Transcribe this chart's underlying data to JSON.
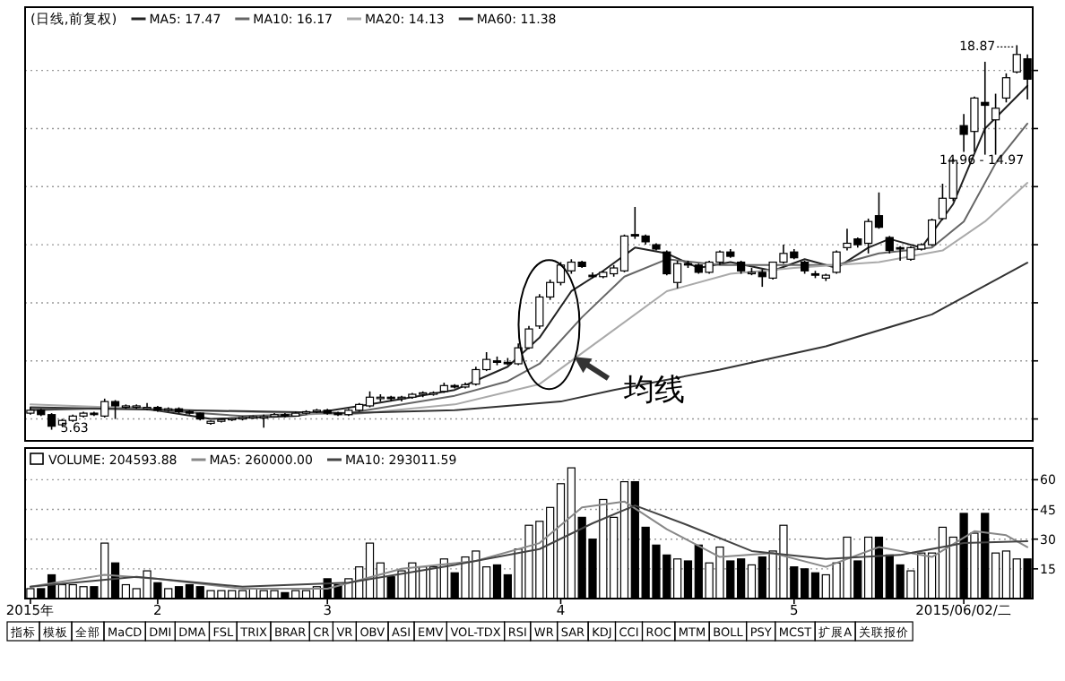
{
  "chart_data": [
    {
      "type": "candlestick",
      "title": "(日线,前复权)",
      "grid": "y",
      "legend": "top left",
      "categories": [
        null,
        null,
        null,
        null,
        null,
        null,
        null,
        null,
        null,
        null,
        null,
        null,
        null,
        null,
        null,
        null,
        null,
        null,
        null,
        null,
        null,
        null,
        null,
        null,
        null,
        null,
        null,
        null,
        null,
        null,
        null,
        null,
        null,
        null,
        null,
        null,
        null,
        null,
        null,
        null,
        null,
        null,
        null,
        null,
        null,
        null,
        null,
        null,
        null,
        null,
        null,
        null,
        null,
        null,
        null,
        null,
        null,
        null,
        null,
        null,
        null,
        null,
        null,
        null,
        null,
        null,
        null,
        null,
        null,
        null,
        null,
        null,
        null,
        null,
        null,
        null,
        null,
        null,
        null,
        null,
        null,
        null,
        null,
        null,
        null,
        null,
        null,
        null,
        null,
        null,
        null,
        null,
        null,
        null,
        null
      ],
      "ohlc": [
        [
          6.2,
          6.4,
          6.15,
          6.3
        ],
        [
          6.3,
          6.35,
          6.1,
          6.15
        ],
        [
          6.15,
          6.2,
          5.63,
          5.75
        ],
        [
          5.8,
          6.0,
          5.75,
          5.95
        ],
        [
          5.95,
          6.15,
          5.9,
          6.1
        ],
        [
          6.1,
          6.25,
          6.05,
          6.2
        ],
        [
          6.2,
          6.25,
          6.1,
          6.15
        ],
        [
          6.1,
          6.7,
          6.05,
          6.6
        ],
        [
          6.6,
          6.65,
          6.0,
          6.45
        ],
        [
          6.4,
          6.5,
          6.35,
          6.45
        ],
        [
          6.4,
          6.5,
          6.35,
          6.45
        ],
        [
          6.35,
          6.55,
          6.3,
          6.4
        ],
        [
          6.4,
          6.45,
          6.25,
          6.3
        ],
        [
          6.3,
          6.4,
          6.25,
          6.35
        ],
        [
          6.35,
          6.4,
          6.2,
          6.25
        ],
        [
          6.25,
          6.3,
          6.15,
          6.2
        ],
        [
          6.2,
          6.22,
          5.95,
          6.0
        ],
        [
          5.85,
          5.95,
          5.8,
          5.92
        ],
        [
          5.92,
          6.0,
          5.88,
          5.98
        ],
        [
          5.98,
          6.05,
          5.93,
          6.02
        ],
        [
          6.0,
          6.1,
          5.95,
          6.05
        ],
        [
          6.05,
          6.12,
          6.0,
          6.08
        ],
        [
          6.05,
          6.15,
          5.7,
          6.08
        ],
        [
          6.08,
          6.2,
          6.05,
          6.15
        ],
        [
          6.15,
          6.2,
          6.05,
          6.1
        ],
        [
          6.1,
          6.25,
          6.08,
          6.2
        ],
        [
          6.2,
          6.3,
          6.15,
          6.25
        ],
        [
          6.25,
          6.35,
          6.2,
          6.3
        ],
        [
          6.3,
          6.35,
          6.15,
          6.2
        ],
        [
          6.2,
          6.25,
          6.1,
          6.15
        ],
        [
          6.15,
          6.35,
          6.1,
          6.3
        ],
        [
          6.3,
          6.55,
          6.25,
          6.5
        ],
        [
          6.45,
          6.95,
          6.4,
          6.75
        ],
        [
          6.7,
          6.85,
          6.6,
          6.75
        ],
        [
          6.75,
          6.8,
          6.6,
          6.7
        ],
        [
          6.7,
          6.8,
          6.6,
          6.75
        ],
        [
          6.75,
          6.9,
          6.7,
          6.85
        ],
        [
          6.85,
          6.95,
          6.75,
          6.9
        ],
        [
          6.85,
          6.95,
          6.8,
          6.9
        ],
        [
          6.95,
          7.25,
          6.9,
          7.15
        ],
        [
          7.15,
          7.2,
          7.05,
          7.1
        ],
        [
          7.1,
          7.25,
          7.05,
          7.18
        ],
        [
          7.2,
          7.8,
          7.15,
          7.7
        ],
        [
          7.7,
          8.3,
          7.65,
          8.05
        ],
        [
          8.0,
          8.15,
          7.85,
          7.95
        ],
        [
          7.95,
          8.1,
          7.85,
          7.9
        ],
        [
          7.9,
          8.6,
          7.85,
          8.45
        ],
        [
          8.45,
          9.2,
          8.4,
          9.1
        ],
        [
          9.2,
          10.3,
          9.1,
          10.2
        ],
        [
          10.2,
          10.8,
          10.1,
          10.7
        ],
        [
          10.7,
          11.4,
          10.6,
          11.3
        ],
        [
          11.1,
          11.5,
          11.0,
          11.4
        ],
        [
          11.4,
          11.45,
          11.2,
          11.25
        ],
        [
          10.95,
          11.05,
          10.85,
          10.9
        ],
        [
          10.9,
          11.1,
          10.85,
          11.05
        ],
        [
          11.0,
          11.3,
          10.9,
          11.2
        ],
        [
          11.1,
          12.35,
          11.05,
          12.3
        ],
        [
          12.35,
          13.3,
          12.2,
          12.3
        ],
        [
          12.3,
          12.35,
          12.0,
          12.1
        ],
        [
          12.0,
          12.05,
          11.8,
          11.85
        ],
        [
          11.75,
          11.8,
          10.95,
          11.0
        ],
        [
          10.7,
          11.45,
          10.5,
          11.35
        ],
        [
          11.35,
          11.45,
          11.2,
          11.3
        ],
        [
          11.3,
          11.35,
          11.0,
          11.05
        ],
        [
          11.05,
          11.45,
          11.0,
          11.4
        ],
        [
          11.4,
          11.8,
          11.3,
          11.75
        ],
        [
          11.75,
          11.85,
          11.55,
          11.6
        ],
        [
          11.4,
          11.45,
          11.0,
          11.1
        ],
        [
          11.0,
          11.2,
          10.95,
          11.05
        ],
        [
          11.05,
          11.15,
          10.55,
          10.9
        ],
        [
          10.85,
          11.4,
          10.8,
          11.4
        ],
        [
          11.4,
          12.0,
          11.35,
          11.7
        ],
        [
          11.75,
          11.85,
          11.5,
          11.55
        ],
        [
          11.4,
          11.45,
          11.0,
          11.1
        ],
        [
          11.0,
          11.1,
          10.85,
          10.95
        ],
        [
          10.85,
          11.0,
          10.75,
          10.95
        ],
        [
          11.05,
          11.8,
          11.0,
          11.75
        ],
        [
          11.9,
          12.55,
          11.8,
          12.05
        ],
        [
          12.2,
          12.25,
          11.9,
          12.0
        ],
        [
          12.05,
          12.9,
          11.7,
          12.8
        ],
        [
          13.0,
          13.8,
          12.55,
          12.6
        ],
        [
          12.25,
          12.3,
          11.7,
          11.8
        ],
        [
          11.9,
          11.95,
          11.45,
          11.85
        ],
        [
          11.5,
          11.95,
          11.45,
          11.9
        ],
        [
          11.85,
          12.05,
          11.8,
          12.0
        ],
        [
          12.0,
          12.9,
          11.95,
          12.85
        ],
        [
          12.9,
          14.1,
          12.85,
          13.6
        ],
        [
          13.6,
          14.96,
          13.5,
          14.9
        ],
        [
          16.1,
          16.5,
          15.2,
          15.8
        ],
        [
          15.9,
          17.1,
          15.2,
          17.05
        ],
        [
          16.9,
          18.3,
          15.1,
          16.8
        ],
        [
          16.3,
          17.2,
          15.1,
          16.7
        ],
        [
          17.05,
          17.9,
          16.9,
          17.75
        ],
        [
          17.95,
          18.87,
          17.9,
          18.55
        ],
        [
          18.4,
          18.55,
          17.0,
          17.7
        ]
      ],
      "series": [
        {
          "type": "line",
          "name": "MA5: 17.47",
          "color": "#222222",
          "values": [
            6.3,
            null,
            null,
            null,
            null,
            null,
            null,
            null,
            null,
            null,
            6.4,
            null,
            null,
            null,
            null,
            null,
            null,
            6.0,
            null,
            null,
            null,
            null,
            null,
            null,
            null,
            6.1,
            null,
            null,
            null,
            null,
            null,
            null,
            6.5,
            null,
            null,
            null,
            null,
            null,
            null,
            null,
            7.0,
            null,
            null,
            null,
            null,
            7.8,
            null,
            null,
            8.8,
            null,
            null,
            10.4,
            null,
            null,
            11.1,
            null,
            null,
            11.9,
            null,
            null,
            11.7,
            null,
            null,
            11.2,
            null,
            null,
            11.4,
            null,
            null,
            null,
            11.1,
            null,
            null,
            11.5,
            null,
            null,
            11.2,
            null,
            null,
            11.9,
            null,
            12.2,
            null,
            null,
            11.9,
            null,
            null,
            13.4,
            null,
            null,
            16.0,
            null,
            null,
            null,
            17.47
          ]
        },
        {
          "type": "line",
          "name": "MA10: 16.17",
          "color": "#666666",
          "values": [
            6.35,
            null,
            null,
            null,
            null,
            null,
            null,
            null,
            null,
            null,
            6.35,
            null,
            null,
            null,
            null,
            null,
            null,
            null,
            null,
            null,
            6.1,
            null,
            null,
            null,
            null,
            null,
            null,
            null,
            null,
            null,
            6.2,
            null,
            null,
            null,
            null,
            null,
            null,
            null,
            null,
            null,
            6.8,
            null,
            null,
            null,
            null,
            7.3,
            null,
            null,
            7.9,
            null,
            null,
            null,
            9.5,
            null,
            null,
            null,
            10.9,
            null,
            null,
            null,
            11.5,
            null,
            null,
            null,
            null,
            11.3,
            null,
            null,
            null,
            null,
            11.3,
            null,
            null,
            null,
            null,
            null,
            11.3,
            null,
            null,
            null,
            11.7,
            null,
            null,
            null,
            null,
            11.9,
            null,
            null,
            12.8,
            null,
            null,
            14.8,
            null,
            null,
            16.17
          ]
        },
        {
          "type": "line",
          "name": "MA20: 14.13",
          "color": "#aaaaaa",
          "values": [
            6.5,
            null,
            null,
            null,
            null,
            null,
            null,
            null,
            null,
            null,
            null,
            null,
            null,
            null,
            null,
            6.3,
            null,
            null,
            null,
            null,
            null,
            null,
            null,
            null,
            null,
            null,
            null,
            null,
            null,
            null,
            6.15,
            null,
            null,
            null,
            null,
            null,
            null,
            null,
            null,
            null,
            6.5,
            null,
            null,
            null,
            null,
            null,
            null,
            null,
            7.2,
            null,
            null,
            null,
            null,
            null,
            8.8,
            null,
            null,
            null,
            null,
            null,
            10.4,
            null,
            null,
            null,
            null,
            null,
            11.0,
            null,
            null,
            null,
            null,
            null,
            11.2,
            null,
            null,
            null,
            null,
            null,
            null,
            null,
            11.4,
            null,
            null,
            null,
            null,
            null,
            11.8,
            null,
            null,
            null,
            12.8,
            null,
            null,
            null,
            14.13
          ]
        },
        {
          "type": "line",
          "name": "MA60: 11.38",
          "color": "#333333",
          "values": [
            6.4,
            null,
            null,
            null,
            null,
            null,
            null,
            null,
            null,
            null,
            null,
            null,
            null,
            null,
            null,
            null,
            null,
            null,
            null,
            null,
            null,
            null,
            null,
            null,
            null,
            null,
            null,
            null,
            null,
            null,
            6.2,
            null,
            null,
            null,
            null,
            null,
            null,
            null,
            null,
            null,
            6.3,
            null,
            null,
            null,
            null,
            null,
            null,
            null,
            null,
            null,
            6.6,
            null,
            null,
            null,
            null,
            7.0,
            null,
            null,
            null,
            null,
            null,
            null,
            null,
            null,
            null,
            7.7,
            null,
            null,
            null,
            null,
            null,
            null,
            null,
            null,
            null,
            8.5,
            null,
            null,
            null,
            null,
            null,
            null,
            null,
            null,
            null,
            9.6,
            null,
            null,
            null,
            null,
            null,
            null,
            null,
            null,
            11.38
          ]
        }
      ],
      "annotations": [
        "18.87",
        "5.63",
        "14.96 - 14.97",
        "均线"
      ]
    },
    {
      "type": "bar",
      "grid": "y",
      "legend": "top left",
      "ylim": [
        0,
        76
      ],
      "yticks": [
        15,
        30,
        45,
        60
      ],
      "categories": [
        "2015年",
        null,
        null,
        null,
        null,
        null,
        null,
        null,
        null,
        null,
        null,
        null,
        "2",
        null,
        null,
        null,
        null,
        null,
        null,
        null,
        null,
        null,
        null,
        null,
        null,
        null,
        null,
        null,
        "3",
        null,
        null,
        null,
        null,
        null,
        null,
        null,
        null,
        null,
        null,
        null,
        null,
        null,
        null,
        null,
        null,
        null,
        null,
        null,
        null,
        null,
        "4",
        null,
        null,
        null,
        null,
        null,
        null,
        null,
        null,
        null,
        null,
        null,
        null,
        null,
        null,
        null,
        null,
        null,
        null,
        null,
        null,
        null,
        "5",
        null,
        null,
        null,
        null,
        null,
        null,
        null,
        null,
        null,
        null,
        null,
        null,
        null,
        null,
        null,
        "2015/06/02/二",
        null,
        null,
        null,
        null,
        null,
        null
      ],
      "series": [
        {
          "name": "VOLUME: 204593.88",
          "values": [
            5,
            5,
            12,
            7,
            7,
            6,
            6,
            28,
            18,
            7,
            5,
            14,
            8,
            5,
            6,
            7,
            6,
            4,
            4,
            4,
            4,
            5,
            4,
            4,
            3,
            4,
            4,
            6,
            10,
            7,
            10,
            16,
            28,
            18,
            11,
            14,
            18,
            16,
            16,
            20,
            13,
            21,
            24,
            16,
            17,
            12,
            25,
            37,
            39,
            46,
            58,
            66,
            41,
            30,
            50,
            41,
            59,
            59,
            36,
            27,
            22,
            20,
            19,
            27,
            18,
            26,
            19,
            20,
            17,
            21,
            24,
            37,
            16,
            15,
            13,
            12,
            18,
            31,
            19,
            31,
            31,
            22,
            17,
            14,
            23,
            23,
            36,
            31,
            43,
            33,
            43,
            23,
            24,
            20,
            20
          ],
          "colors": [
            "#ffffff",
            "#000000",
            "#000000",
            "#ffffff",
            "#ffffff",
            "#ffffff",
            "#000000",
            "#ffffff",
            "#000000",
            "#ffffff",
            "#ffffff",
            "#ffffff",
            "#000000",
            "#ffffff",
            "#000000",
            "#000000",
            "#000000",
            "#ffffff",
            "#ffffff",
            "#ffffff",
            "#ffffff",
            "#ffffff",
            "#ffffff",
            "#ffffff",
            "#000000",
            "#ffffff",
            "#ffffff",
            "#ffffff",
            "#000000",
            "#000000",
            "#ffffff",
            "#ffffff",
            "#ffffff",
            "#ffffff",
            "#000000",
            "#ffffff",
            "#ffffff",
            "#ffffff",
            "#ffffff",
            "#ffffff",
            "#000000",
            "#ffffff",
            "#ffffff",
            "#ffffff",
            "#000000",
            "#000000",
            "#ffffff",
            "#ffffff",
            "#ffffff",
            "#ffffff",
            "#ffffff",
            "#ffffff",
            "#000000",
            "#000000",
            "#ffffff",
            "#ffffff",
            "#ffffff",
            "#000000",
            "#000000",
            "#000000",
            "#000000",
            "#ffffff",
            "#000000",
            "#000000",
            "#ffffff",
            "#ffffff",
            "#000000",
            "#000000",
            "#ffffff",
            "#000000",
            "#ffffff",
            "#ffffff",
            "#000000",
            "#000000",
            "#000000",
            "#ffffff",
            "#ffffff",
            "#ffffff",
            "#000000",
            "#ffffff",
            "#000000",
            "#000000",
            "#000000",
            "#ffffff",
            "#ffffff",
            "#ffffff",
            "#ffffff",
            "#ffffff",
            "#000000",
            "#ffffff",
            "#000000",
            "#ffffff",
            "#ffffff",
            "#ffffff",
            "#000000"
          ]
        },
        {
          "type": "line",
          "name": "MA5: 260000.00",
          "color": "#888888",
          "values": [
            6,
            null,
            null,
            null,
            null,
            null,
            null,
            12,
            null,
            null,
            null,
            null,
            10,
            null,
            null,
            null,
            null,
            null,
            null,
            null,
            5,
            null,
            null,
            null,
            null,
            null,
            null,
            null,
            5,
            null,
            null,
            null,
            null,
            null,
            null,
            15,
            null,
            null,
            null,
            null,
            null,
            null,
            19,
            null,
            null,
            null,
            null,
            null,
            28,
            null,
            null,
            null,
            46,
            null,
            null,
            null,
            49,
            null,
            null,
            null,
            35,
            null,
            null,
            null,
            null,
            21,
            null,
            null,
            null,
            null,
            23,
            null,
            null,
            null,
            null,
            16,
            null,
            null,
            null,
            null,
            26,
            null,
            null,
            null,
            null,
            21,
            null,
            null,
            null,
            34,
            null,
            null,
            32,
            null,
            26
          ]
        },
        {
          "type": "line",
          "name": "MA10: 293011.59",
          "color": "#444444",
          "values": [
            6,
            null,
            null,
            null,
            null,
            null,
            null,
            null,
            null,
            null,
            11,
            null,
            null,
            null,
            null,
            null,
            null,
            null,
            null,
            null,
            6,
            null,
            null,
            null,
            null,
            null,
            null,
            null,
            null,
            null,
            8,
            null,
            null,
            null,
            null,
            null,
            null,
            null,
            null,
            null,
            17,
            null,
            null,
            null,
            null,
            null,
            null,
            null,
            25,
            null,
            null,
            null,
            null,
            38,
            null,
            null,
            null,
            47,
            null,
            null,
            null,
            null,
            37,
            null,
            null,
            null,
            null,
            null,
            24,
            null,
            null,
            null,
            null,
            null,
            null,
            20,
            null,
            null,
            null,
            null,
            null,
            null,
            22,
            null,
            null,
            null,
            null,
            null,
            28,
            null,
            null,
            null,
            null,
            null,
            29
          ]
        }
      ],
      "annotations": [
        "指标",
        "模板",
        "全部",
        "MaCD",
        "DMI",
        "DMA",
        "FSL",
        "TRIX",
        "BRAR",
        "CR",
        "VR",
        "OBV",
        "ASI",
        "EMV",
        "VOL-TDX",
        "RSI",
        "WR",
        "SAR",
        "KDJ",
        "CCI",
        "ROC",
        "MTM",
        "BOLL",
        "PSY",
        "MCST",
        "扩展A",
        "关联报价"
      ]
    }
  ]
}
